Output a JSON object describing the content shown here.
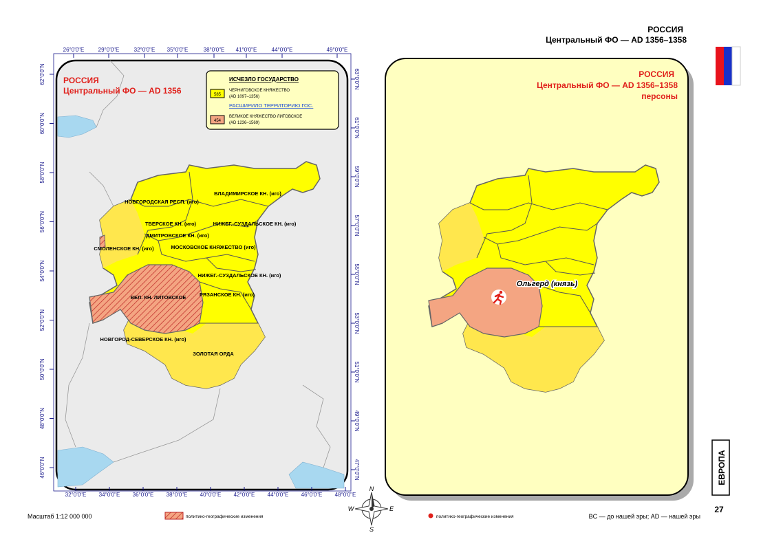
{
  "header": {
    "country": "РОССИЯ",
    "subtitle": "Центральный ФО — AD 1356–1358"
  },
  "left_map": {
    "title": "РОССИЯ",
    "subtitle": "Центральный ФО — AD 1356",
    "top_axis": [
      "26°0'0\"E",
      "29°0'0\"E",
      "32°0'0\"E",
      "35°0'0\"E",
      "38°0'0\"E",
      "41°0'0\"E",
      "44°0'0\"E",
      "49°0'0\"E"
    ],
    "bottom_axis": [
      "32°0'0\"E",
      "34°0'0\"E",
      "36°0'0\"E",
      "38°0'0\"E",
      "40°0'0\"E",
      "42°0'0\"E",
      "44°0'0\"E",
      "46°0'0\"E",
      "48°0'0\"E"
    ],
    "left_axis": [
      "62°0'0\"N",
      "60°0'0\"N",
      "58°0'0\"N",
      "56°0'0\"N",
      "54°0'0\"N",
      "52°0'0\"N",
      "50°0'0\"N",
      "48°0'0\"N",
      "46°0'0\"N"
    ],
    "right_axis": [
      "63°0'0\"N",
      "61°0'0\"N",
      "59°0'0\"N",
      "57°0'0\"N",
      "55°0'0\"N",
      "53°0'0\"N",
      "51°0'0\"N",
      "49°0'0\"N",
      "47°0'0\"N"
    ],
    "legend": {
      "vanished_heading": "ИСЧЕЗЛО ГОСУДАРСТВО",
      "vanished_badge": "585",
      "vanished_name": "ЧЕРНИГОВСКОЕ КНЯЖЕСТВО",
      "vanished_dates": "(AD 1097–1356)",
      "expanded_heading": "РАСШИРИЛО ТЕРРИТОРИЮ ГОС.",
      "expanded_badge": "454",
      "expanded_name": "ВЕЛИКОЕ КНЯЖЕСТВО ЛИТОВСКОЕ",
      "expanded_dates": "(AD 1236–1569)"
    },
    "regions": [
      "НОВГОРОДСКАЯ РЕСП. (иго)",
      "ВЛАДИМИРСКОЕ КН. (иго)",
      "ТВЕРСКОЕ КН. (иго)",
      "НИЖЕГ.-СУЗДАЛЬСКОЕ КН. (иго)",
      "ДМИТРОВСКОЕ КН. (иго)",
      "СМОЛЕНСКОЕ КН. (иго)",
      "МОСКОВСКОЕ КНЯЖЕСТВО (иго)",
      "НИЖЕГ.-СУЗДАЛЬСКОЕ КН. (иго)",
      "ВЕЛ. КН. ЛИТОВСКОЕ",
      "РЯЗАНСКОЕ КН. (иго)",
      "НОВГОРОД-СЕВЕРСКОЕ КН. (иго)",
      "ЗОЛОТАЯ ОРДА"
    ]
  },
  "right_map": {
    "title": "РОССИЯ",
    "subtitle": "Центральный ФО — AD 1356–1358",
    "note": "персоны",
    "person": "Ольгерд (князь)"
  },
  "compass": {
    "n": "N",
    "e": "E",
    "s": "S",
    "w": "W"
  },
  "footer": {
    "scale": "Масштаб 1:12 000 000",
    "hatch_legend": "политико-географические изменения",
    "dot_legend": "политико-географические изменения",
    "era_note": "BC — до нашей эры; AD — нашей эры"
  },
  "side": {
    "section": "ЕВРОПА",
    "page": "27"
  }
}
